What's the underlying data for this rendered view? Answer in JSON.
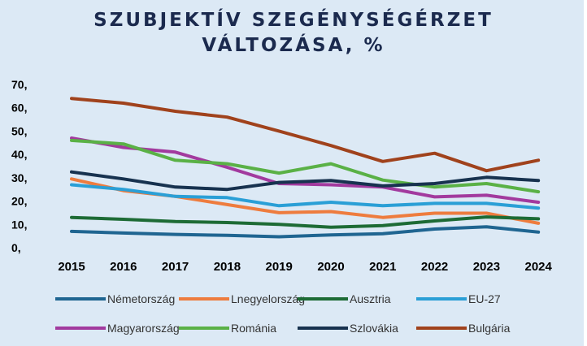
{
  "chart_data": {
    "type": "line",
    "title_line1": "SZUBJEKTÍV SZEGÉNYSÉGÉRZET",
    "title_line2": "VÁLTOZÁSA, %",
    "x": [
      "2015",
      "2016",
      "2017",
      "2018",
      "2019",
      "2020",
      "2021",
      "2022",
      "2023",
      "2024"
    ],
    "y_ticks": [
      "70,",
      "60,",
      "50,",
      "40,",
      "30,",
      "20,",
      "10,",
      "0,"
    ],
    "ylim": [
      0,
      70
    ],
    "grid": false,
    "legend_position": "bottom",
    "series": [
      {
        "name": "Németország",
        "color": "#1f6591",
        "values": [
          7,
          6.3,
          5.7,
          5.3,
          4.7,
          5.5,
          6,
          8,
          9,
          6.7
        ]
      },
      {
        "name": "Lnegyelország",
        "color": "#ee7c3e",
        "values": [
          29.5,
          24.5,
          22,
          18.5,
          15,
          15.5,
          13,
          14.8,
          14.8,
          10.5
        ]
      },
      {
        "name": "Ausztria",
        "color": "#1d6b35",
        "values": [
          13,
          12.2,
          11.2,
          10.8,
          10,
          8.8,
          9.5,
          11.5,
          13.2,
          12.4
        ]
      },
      {
        "name": "EU-27",
        "color": "#2a9fd6",
        "values": [
          27,
          25,
          22,
          21.5,
          18,
          19.5,
          18,
          19,
          19,
          17
        ]
      },
      {
        "name": "Magyarország",
        "color": "#a23a9e",
        "values": [
          47,
          43,
          41,
          34.5,
          27.5,
          27,
          26,
          21.8,
          22.5,
          19.5
        ]
      },
      {
        "name": "Románia",
        "color": "#5ab146",
        "values": [
          46,
          44.5,
          37.5,
          36,
          32,
          36,
          29,
          26,
          27.5,
          24
        ]
      },
      {
        "name": "Szlovákia",
        "color": "#17324f",
        "values": [
          32.5,
          29.5,
          26,
          25,
          28,
          28.8,
          26.5,
          27.5,
          30.2,
          28.8
        ]
      },
      {
        "name": "Bulgária",
        "color": "#a0421c",
        "values": [
          64,
          62,
          58.5,
          56,
          50,
          43.8,
          37,
          40.5,
          33,
          37.5
        ]
      }
    ]
  }
}
